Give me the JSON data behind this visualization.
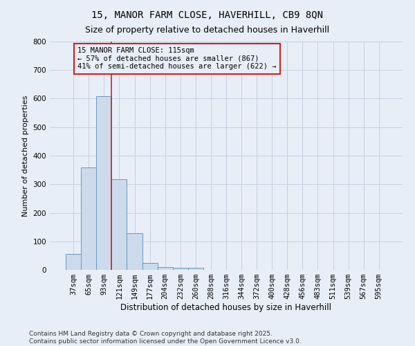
{
  "title1": "15, MANOR FARM CLOSE, HAVERHILL, CB9 8QN",
  "title2": "Size of property relative to detached houses in Haverhill",
  "xlabel": "Distribution of detached houses by size in Haverhill",
  "ylabel": "Number of detached properties",
  "categories": [
    "37sqm",
    "65sqm",
    "93sqm",
    "121sqm",
    "149sqm",
    "177sqm",
    "204sqm",
    "232sqm",
    "260sqm",
    "288sqm",
    "316sqm",
    "344sqm",
    "372sqm",
    "400sqm",
    "428sqm",
    "456sqm",
    "483sqm",
    "511sqm",
    "539sqm",
    "567sqm",
    "595sqm"
  ],
  "values": [
    55,
    358,
    608,
    318,
    128,
    25,
    10,
    8,
    8,
    0,
    0,
    0,
    0,
    0,
    0,
    0,
    0,
    0,
    0,
    0,
    0
  ],
  "bar_color": "#ccdaeb",
  "bar_edge_color": "#6699bb",
  "grid_color": "#c5cfe0",
  "background_color": "#e8eef8",
  "vline_color": "#cc2222",
  "annotation_line1": "15 MANOR FARM CLOSE: 115sqm",
  "annotation_line2": "← 57% of detached houses are smaller (867)",
  "annotation_line3": "41% of semi-detached houses are larger (622) →",
  "annotation_box_color": "#cc2222",
  "footer_text": "Contains HM Land Registry data © Crown copyright and database right 2025.\nContains public sector information licensed under the Open Government Licence v3.0.",
  "ylim": [
    0,
    800
  ],
  "yticks": [
    0,
    100,
    200,
    300,
    400,
    500,
    600,
    700,
    800
  ],
  "title1_fontsize": 10,
  "title2_fontsize": 9,
  "xlabel_fontsize": 8.5,
  "ylabel_fontsize": 8,
  "tick_fontsize": 7.5,
  "footer_fontsize": 6.5,
  "ann_fontsize": 7.5
}
